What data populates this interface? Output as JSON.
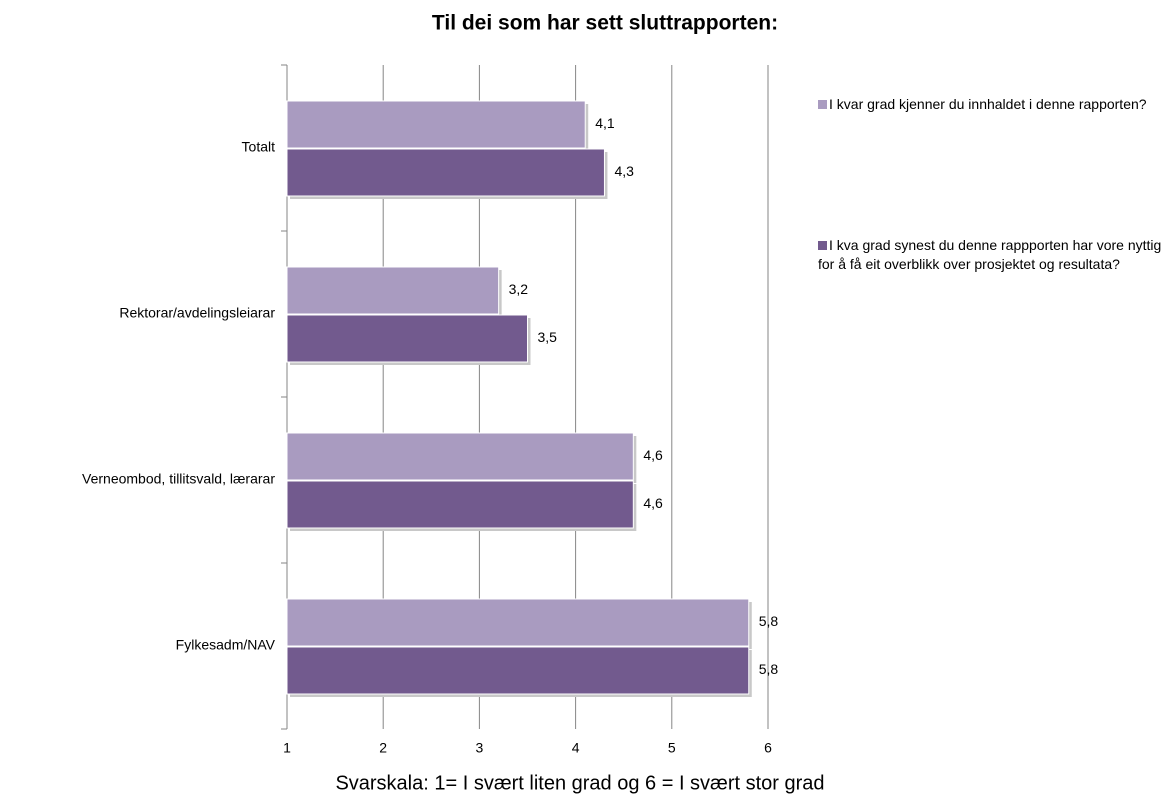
{
  "chart_data": {
    "type": "barh",
    "title": "Til dei som har sett sluttrapporten:",
    "x_label": "Svarskala: 1= I svært liten grad og 6 = I svært stor grad",
    "categories": [
      "Totalt",
      "Rektorar/avdelingsleiarar",
      "Verneombod, tillitsvald, lærarar",
      "Fylkesadm/NAV"
    ],
    "series": [
      {
        "name": "I kvar grad kjenner du innhaldet i denne rapporten?",
        "color": "#a99bc0",
        "values": [
          4.1,
          3.2,
          4.6,
          5.8
        ],
        "value_labels": [
          "4,1",
          "3,2",
          "4,6",
          "5,8"
        ]
      },
      {
        "name": "I kva grad synest du denne rappporten har vore nyttig for å få eit overblikk over prosjektet og resultata?",
        "color": "#725a8e",
        "values": [
          4.3,
          3.5,
          4.6,
          5.8
        ],
        "value_labels": [
          "4,3",
          "3,5",
          "4,6",
          "5,8"
        ]
      }
    ],
    "xlim": [
      1,
      6
    ],
    "xticks": [
      1,
      2,
      3,
      4,
      5,
      6
    ],
    "grid": true,
    "legend": "right"
  }
}
